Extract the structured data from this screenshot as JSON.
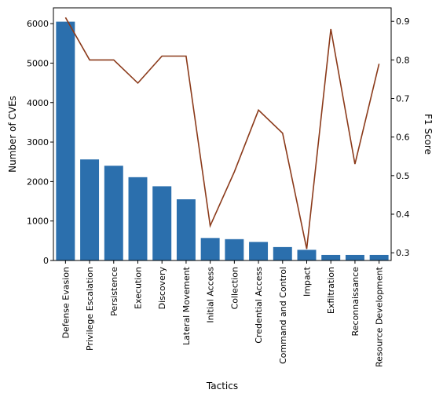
{
  "chart_data": {
    "type": "bar",
    "categories": [
      "Defense Evasion",
      "Privilege Escalation",
      "Persistence",
      "Execution",
      "Discovery",
      "Lateral Movement",
      "Initial Access",
      "Collection",
      "Credential Access",
      "Command and Control",
      "Impact",
      "Exfiltration",
      "Reconnaissance",
      "Resource Development"
    ],
    "series": [
      {
        "type": "bar",
        "axis": "left",
        "values": [
          6050,
          2560,
          2400,
          2110,
          1880,
          1550,
          570,
          540,
          470,
          340,
          270,
          140,
          140,
          140
        ],
        "color": "#2b6fad"
      },
      {
        "type": "line",
        "axis": "right",
        "values": [
          0.91,
          0.8,
          0.8,
          0.74,
          0.81,
          0.81,
          0.37,
          0.51,
          0.67,
          0.61,
          0.31,
          0.88,
          0.53,
          0.79
        ],
        "color": "#8b3a1a"
      }
    ],
    "xlabel": "Tactics",
    "ylabel": "Number of CVEs",
    "y2label": "F1 Score",
    "ylim": [
      0,
      6400
    ],
    "y2lim": [
      0.28,
      0.935
    ],
    "yticks": [
      "0",
      "1000",
      "2000",
      "3000",
      "4000",
      "5000",
      "6000"
    ],
    "y2ticks": [
      "0.3",
      "0.4",
      "0.5",
      "0.6",
      "0.7",
      "0.8",
      "0.9"
    ],
    "grid": false,
    "legend": "none"
  }
}
